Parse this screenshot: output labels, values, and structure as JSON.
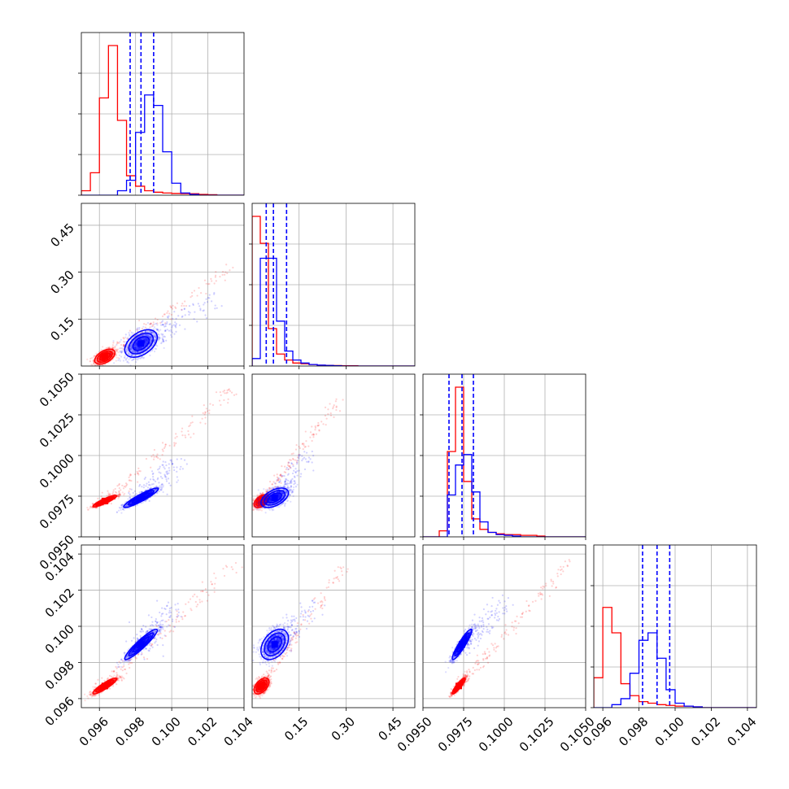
{
  "chart_data": {
    "type": "corner",
    "title": "",
    "grid": true,
    "series": [
      {
        "color": "#ff0000"
      },
      {
        "color": "#0000ff"
      }
    ],
    "parameters": [
      {
        "range": [
          0.095,
          0.104
        ],
        "ticks": [
          "0.096",
          "0.098",
          "0.100",
          "0.102",
          "0.104"
        ],
        "tick_values": [
          0.096,
          0.098,
          0.1,
          0.102,
          0.104
        ]
      },
      {
        "range": [
          0.0,
          0.52
        ],
        "ticks": [
          "0.15",
          "0.30",
          "0.45"
        ],
        "tick_values": [
          0.15,
          0.3,
          0.45
        ]
      },
      {
        "range": [
          0.095,
          0.105
        ],
        "ticks": [
          "0.0950",
          "0.0975",
          "0.1000",
          "0.1025",
          "0.1050"
        ],
        "tick_values": [
          0.095,
          0.0975,
          0.1,
          0.1025,
          0.105
        ]
      },
      {
        "range": [
          0.0955,
          0.1045
        ],
        "ticks": [
          "0.096",
          "0.098",
          "0.100",
          "0.102",
          "0.104"
        ],
        "tick_values": [
          0.096,
          0.098,
          0.1,
          0.102,
          0.104
        ]
      }
    ],
    "quantile_lines": [
      [
        0.0977,
        0.0983,
        0.099
      ],
      [
        0.045,
        0.068,
        0.11
      ],
      [
        0.0966,
        0.0974,
        0.0981
      ],
      [
        0.0982,
        0.099,
        0.0997
      ]
    ],
    "histograms": [
      {
        "bin_edges": [
          0.095,
          0.0955,
          0.096,
          0.0965,
          0.097,
          0.0975,
          0.098,
          0.0985,
          0.099,
          0.0995,
          0.1,
          0.1005,
          0.101,
          0.1015,
          0.102,
          0.1025,
          0.103,
          0.1035,
          0.104
        ],
        "red": [
          0.03,
          0.15,
          0.65,
          1.0,
          0.5,
          0.13,
          0.06,
          0.03,
          0.02,
          0.015,
          0.012,
          0.01,
          0.01,
          0.005,
          0.003,
          0.0,
          0.0,
          0.0
        ],
        "blue": [
          0.0,
          0.0,
          0.0,
          0.0,
          0.03,
          0.1,
          0.42,
          0.67,
          0.6,
          0.29,
          0.08,
          0.015,
          0.005,
          0.0,
          0.0,
          0.0,
          0.0,
          0.0
        ]
      },
      {
        "bin_edges": [
          0.0,
          0.026,
          0.052,
          0.078,
          0.104,
          0.13,
          0.156,
          0.182,
          0.208,
          0.234,
          0.26,
          0.286,
          0.312,
          0.338,
          0.364,
          0.39,
          0.416,
          0.442,
          0.468,
          0.494,
          0.52
        ],
        "red": [
          1.0,
          0.82,
          0.25,
          0.08,
          0.04,
          0.02,
          0.015,
          0.01,
          0.005,
          0.004,
          0.003,
          0.002,
          0.002,
          0.0,
          0.0,
          0.0,
          0.0,
          0.0,
          0.0,
          0.0
        ],
        "blue": [
          0.05,
          0.72,
          0.72,
          0.3,
          0.1,
          0.04,
          0.02,
          0.01,
          0.006,
          0.004,
          0.002,
          0.0,
          0.0,
          0.0,
          0.0,
          0.0,
          0.0,
          0.0,
          0.0,
          0.0
        ]
      },
      {
        "bin_edges": [
          0.095,
          0.0955,
          0.096,
          0.0965,
          0.097,
          0.0975,
          0.098,
          0.0985,
          0.099,
          0.0995,
          0.1,
          0.1005,
          0.101,
          0.1015,
          0.102,
          0.1025,
          0.103,
          0.1035,
          0.104,
          0.1045,
          0.105
        ],
        "red": [
          0.0,
          0.0,
          0.04,
          0.57,
          1.0,
          0.37,
          0.12,
          0.05,
          0.03,
          0.02,
          0.015,
          0.015,
          0.01,
          0.01,
          0.005,
          0.0,
          0.0,
          0.0,
          0.0,
          0.0
        ],
        "blue": [
          0.0,
          0.0,
          0.0,
          0.28,
          0.48,
          0.55,
          0.3,
          0.1,
          0.03,
          0.015,
          0.01,
          0.005,
          0.0,
          0.0,
          0.0,
          0.0,
          0.0,
          0.0,
          0.0,
          0.0
        ]
      },
      {
        "bin_edges": [
          0.0955,
          0.096,
          0.0965,
          0.097,
          0.0975,
          0.098,
          0.0985,
          0.099,
          0.0995,
          0.1,
          0.1005,
          0.101,
          0.1015,
          0.102,
          0.1025,
          0.103,
          0.1035,
          0.104,
          0.1045
        ],
        "red": [
          0.2,
          0.67,
          0.5,
          0.16,
          0.08,
          0.04,
          0.03,
          0.02,
          0.015,
          0.01,
          0.01,
          0.005,
          0.0,
          0.0,
          0.0,
          0.0,
          0.0,
          0.0
        ],
        "blue": [
          0.0,
          0.0,
          0.02,
          0.06,
          0.23,
          0.45,
          0.5,
          0.33,
          0.12,
          0.03,
          0.01,
          0.005,
          0.0,
          0.0,
          0.0,
          0.0,
          0.0,
          0.0
        ]
      }
    ],
    "scatter_pairs": [
      {
        "x_param": 0,
        "y_param": 1,
        "red": {
          "mean": [
            0.0963,
            0.03
          ],
          "sd": [
            0.00028,
            0.012
          ],
          "corr": 0.5,
          "tail_to": [
            0.1035,
            0.32
          ]
        },
        "blue": {
          "mean": [
            0.0983,
            0.072
          ],
          "sd": [
            0.00045,
            0.022
          ],
          "corr": 0.45,
          "tail_to": [
            0.1025,
            0.22
          ]
        }
      },
      {
        "x_param": 0,
        "y_param": 2,
        "red": {
          "mean": [
            0.0963,
            0.0972
          ],
          "sd": [
            0.00033,
            0.00018
          ],
          "corr": 0.9,
          "tail_to": [
            0.1035,
            0.1042
          ]
        },
        "blue": {
          "mean": [
            0.0983,
            0.0974
          ],
          "sd": [
            0.00048,
            0.0003
          ],
          "corr": 0.92,
          "tail_to": [
            0.1002,
            0.0997
          ]
        }
      },
      {
        "x_param": 1,
        "y_param": 2,
        "red": {
          "mean": [
            0.03,
            0.0972
          ],
          "sd": [
            0.012,
            0.0002
          ],
          "corr": 0.5,
          "tail_to": [
            0.28,
            0.1035
          ]
        },
        "blue": {
          "mean": [
            0.072,
            0.0974
          ],
          "sd": [
            0.022,
            0.0003
          ],
          "corr": 0.5,
          "tail_to": [
            0.18,
            0.1002
          ]
        }
      },
      {
        "x_param": 0,
        "y_param": 3,
        "red": {
          "mean": [
            0.0963,
            0.0967
          ],
          "sd": [
            0.00033,
            0.00022
          ],
          "corr": 0.9,
          "tail_to": [
            0.1035,
            0.1035
          ]
        },
        "blue": {
          "mean": [
            0.0983,
            0.099
          ],
          "sd": [
            0.00045,
            0.00042
          ],
          "corr": 0.93,
          "tail_to": [
            0.1002,
            0.1012
          ]
        }
      },
      {
        "x_param": 1,
        "y_param": 3,
        "red": {
          "mean": [
            0.03,
            0.0967
          ],
          "sd": [
            0.012,
            0.00022
          ],
          "corr": 0.5,
          "tail_to": [
            0.3,
            0.1035
          ]
        },
        "blue": {
          "mean": [
            0.072,
            0.099
          ],
          "sd": [
            0.022,
            0.00042
          ],
          "corr": 0.4,
          "tail_to": [
            0.2,
            0.1012
          ]
        }
      },
      {
        "x_param": 2,
        "y_param": 3,
        "red": {
          "mean": [
            0.0972,
            0.0967
          ],
          "sd": [
            0.0002,
            0.00022
          ],
          "corr": 0.9,
          "tail_to": [
            0.104,
            0.1035
          ]
        },
        "blue": {
          "mean": [
            0.0974,
            0.099
          ],
          "sd": [
            0.0003,
            0.00042
          ],
          "corr": 0.92,
          "tail_to": [
            0.1002,
            0.1012
          ]
        }
      }
    ]
  }
}
